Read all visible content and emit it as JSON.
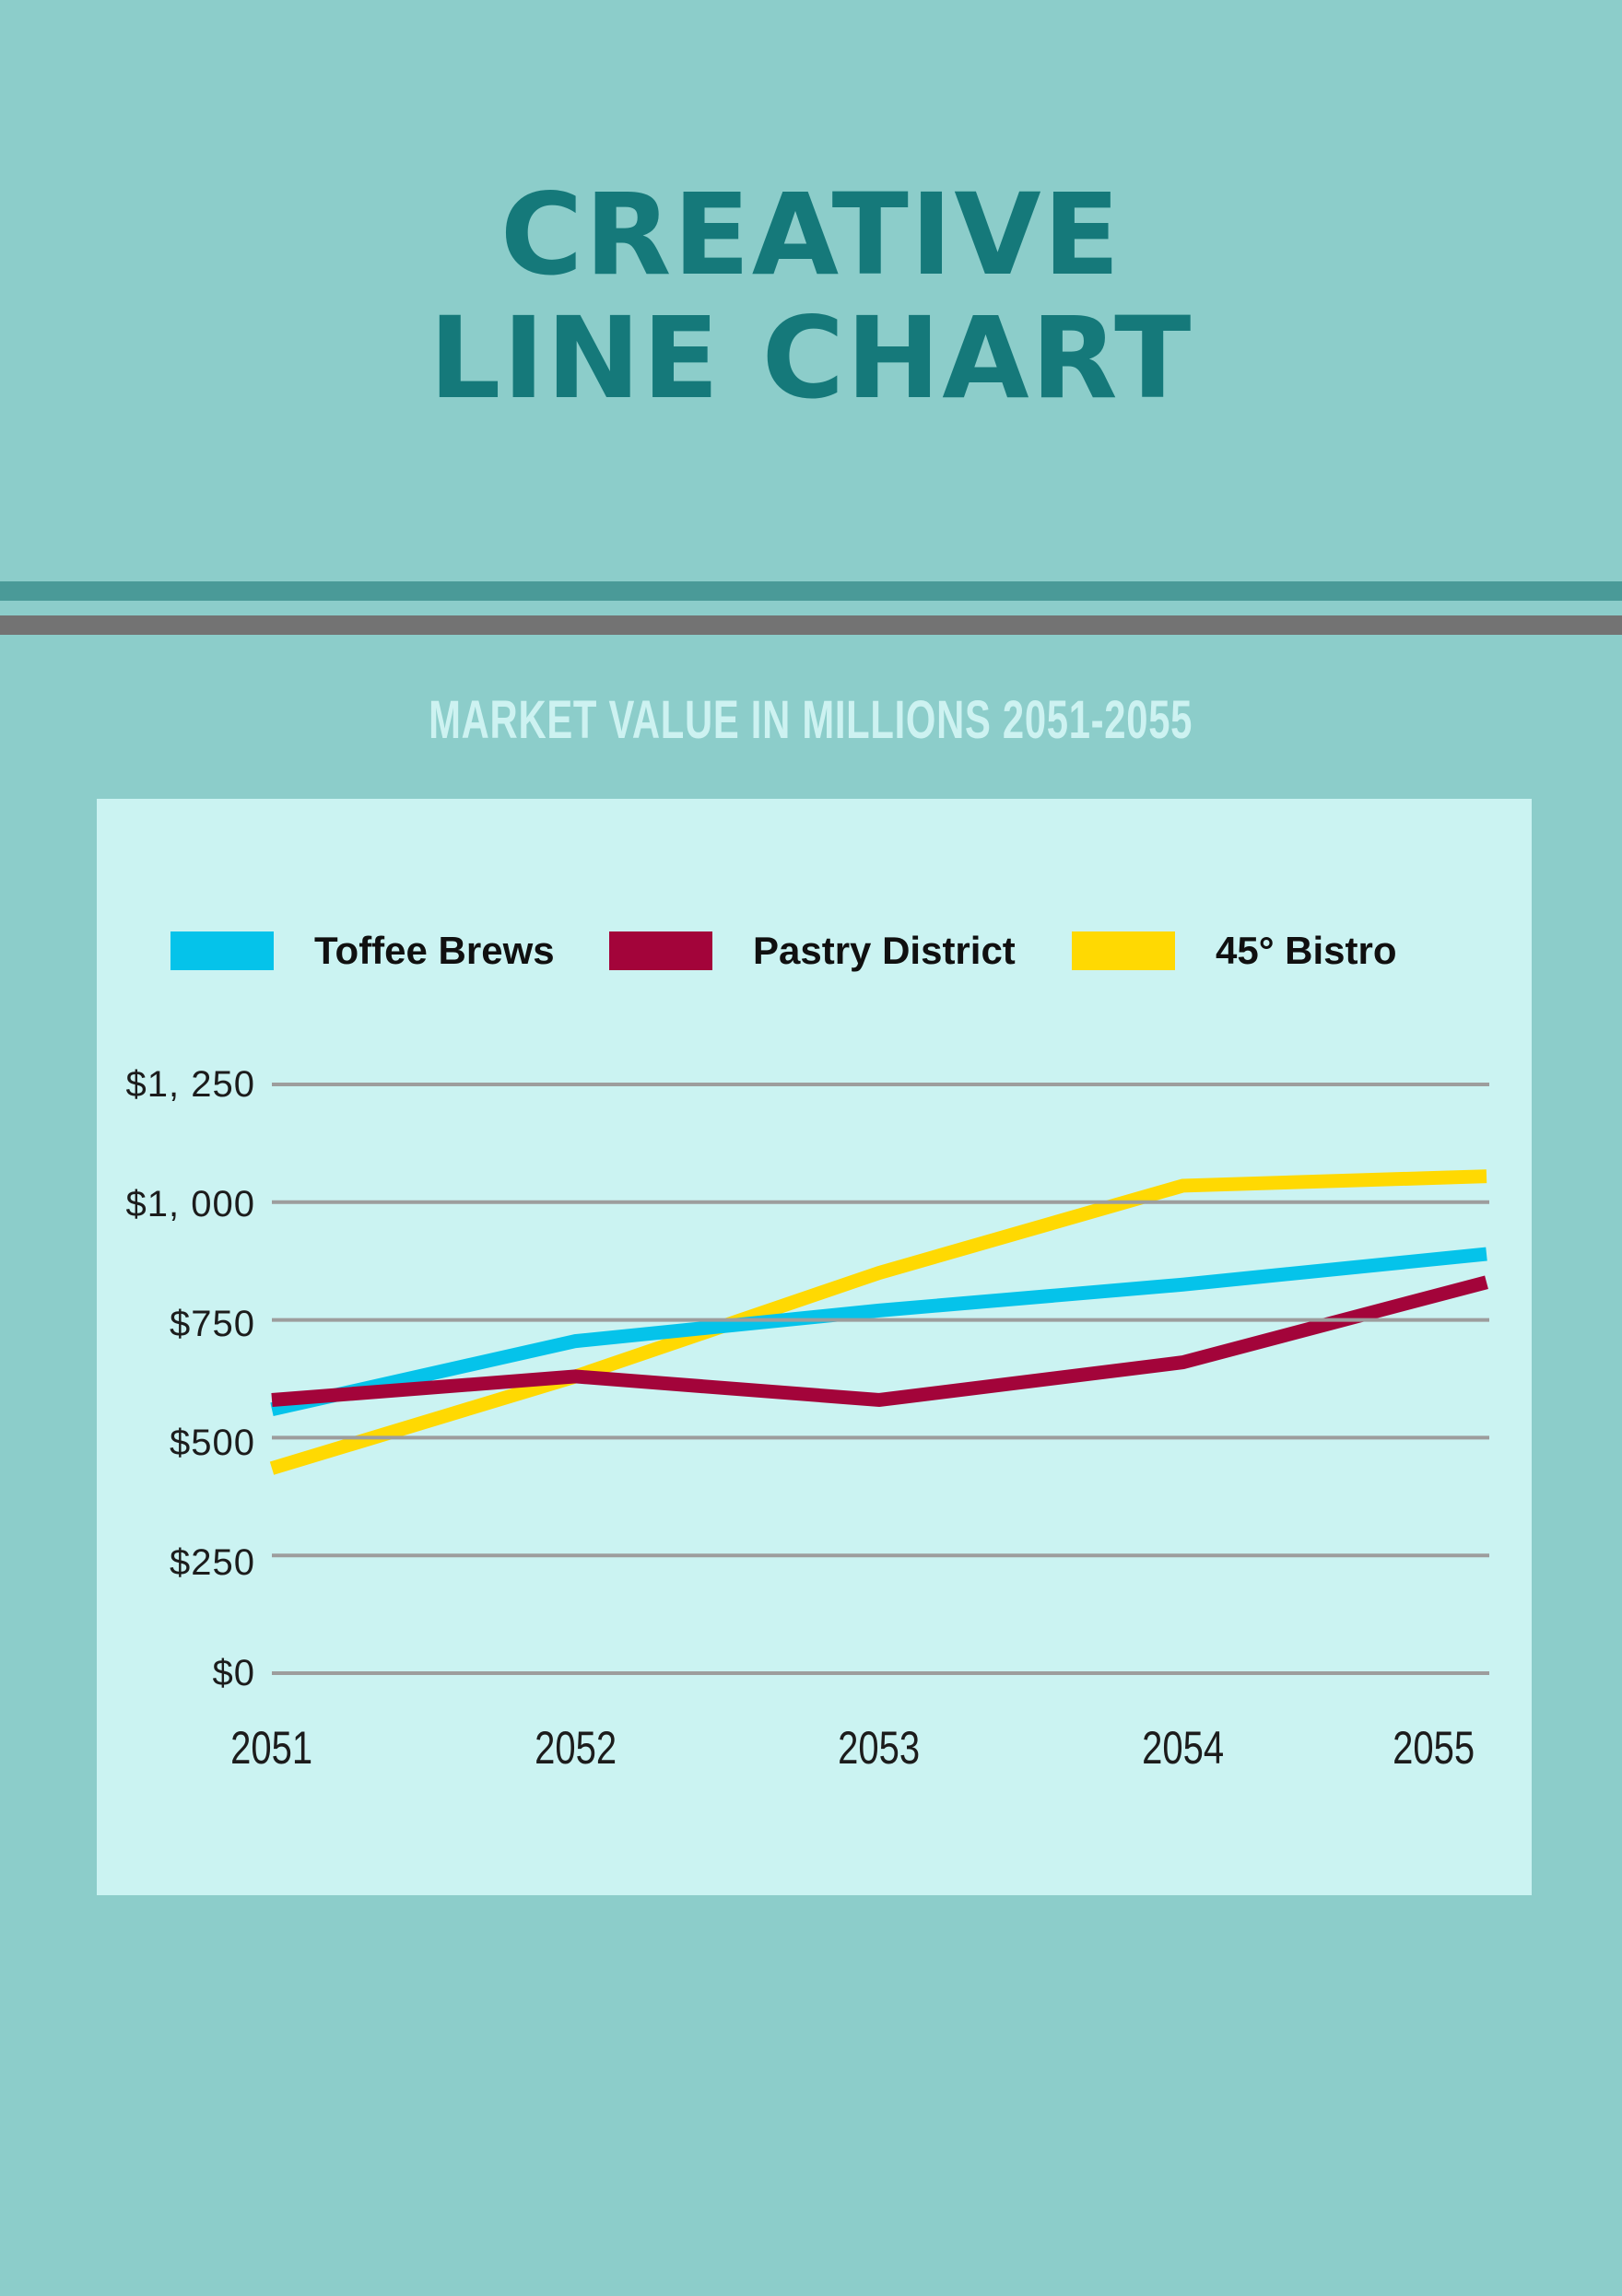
{
  "page": {
    "title_line1": "CREATIVE",
    "title_line2": "LINE CHART",
    "subtitle": "MARKET VALUE IN MILLIONS 2051-2055"
  },
  "colors": {
    "background": "#8ccdca",
    "title_text": "#15797a",
    "divider_teal": "#4a9a98",
    "divider_gray": "#737373",
    "panel_background": "#cbf3f2",
    "subtitle_text": "#cdf2f1",
    "gridline": "#9d9d9d",
    "axis_text": "#1c1c1c",
    "legend_text": "#101010"
  },
  "chart_data": {
    "type": "line",
    "title": "MARKET VALUE IN MILLIONS 2051-2055",
    "x_labels": [
      "2051",
      "2052",
      "2053",
      "2054",
      "2055"
    ],
    "y_ticks": [
      0,
      250,
      500,
      750,
      1000,
      1250
    ],
    "y_tick_labels": [
      "$0",
      "$250",
      "$500",
      "$750",
      "$1, 000",
      "$1, 250"
    ],
    "ylim": [
      0,
      1250
    ],
    "grid": true,
    "legend_position": "top",
    "series": [
      {
        "name": "Toffee Brews",
        "color": "#05c3ea",
        "values": [
          560,
          705,
          770,
          825,
          890
        ]
      },
      {
        "name": "Pastry District",
        "color": "#a3043a",
        "values": [
          580,
          630,
          580,
          660,
          830
        ]
      },
      {
        "name": "45° Bistro",
        "color": "#ffd902",
        "values": [
          435,
          630,
          850,
          1035,
          1055
        ]
      }
    ]
  }
}
